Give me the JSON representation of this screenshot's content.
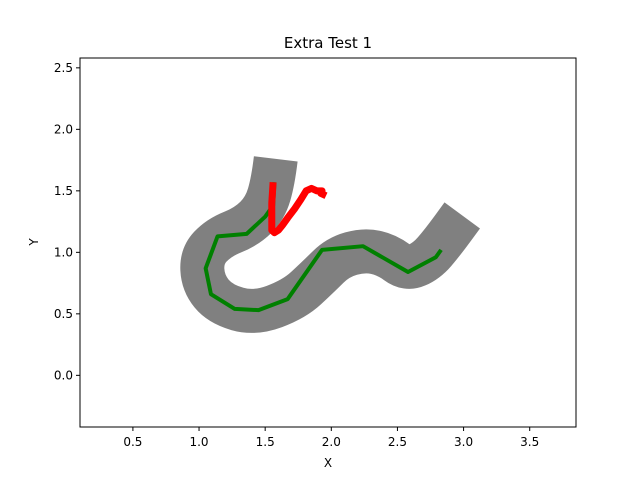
{
  "chart_data": {
    "type": "line",
    "title": "Extra Test 1",
    "xlabel": "X",
    "ylabel": "Y",
    "xlim": [
      0.1,
      3.85
    ],
    "ylim": [
      -0.42,
      2.58
    ],
    "xticks": [
      0.5,
      1.0,
      1.5,
      2.0,
      2.5,
      3.0,
      3.5
    ],
    "xtick_labels": [
      "0.5",
      "1.0",
      "1.5",
      "2.0",
      "2.5",
      "3.0",
      "3.5"
    ],
    "yticks": [
      0.0,
      0.5,
      1.0,
      1.5,
      2.0,
      2.5
    ],
    "ytick_labels": [
      "0.0",
      "0.5",
      "1.0",
      "1.5",
      "2.0",
      "2.5"
    ],
    "grid": false,
    "legend": false,
    "track": {
      "color": "#808080",
      "centerline": [
        [
          1.58,
          1.76
        ],
        [
          1.56,
          1.58
        ],
        [
          1.5,
          1.36
        ],
        [
          1.36,
          1.21
        ],
        [
          1.15,
          1.12
        ],
        [
          1.02,
          0.97
        ],
        [
          1.03,
          0.75
        ],
        [
          1.16,
          0.58
        ],
        [
          1.42,
          0.5
        ],
        [
          1.72,
          0.62
        ],
        [
          1.9,
          0.8
        ],
        [
          2.05,
          0.96
        ],
        [
          2.25,
          1.02
        ],
        [
          2.42,
          0.98
        ],
        [
          2.57,
          0.86
        ],
        [
          2.72,
          0.93
        ],
        [
          2.84,
          1.08
        ],
        [
          2.99,
          1.3
        ]
      ]
    },
    "series": [
      {
        "color": "#008000",
        "x": [
          1.57,
          1.56,
          1.5,
          1.36,
          1.14,
          1.05,
          1.09,
          1.27,
          1.45,
          1.67,
          1.93,
          2.24,
          2.58,
          2.79,
          2.83
        ],
        "y": [
          1.57,
          1.38,
          1.29,
          1.15,
          1.13,
          0.87,
          0.66,
          0.54,
          0.53,
          0.62,
          1.02,
          1.05,
          0.84,
          0.96,
          1.02
        ]
      },
      {
        "color": "#ff0000",
        "x": [
          1.56,
          1.55,
          1.55,
          1.57,
          1.6,
          1.63,
          1.67,
          1.72,
          1.77,
          1.81,
          1.85,
          1.89,
          1.93,
          1.92,
          1.96
        ],
        "y": [
          1.57,
          1.4,
          1.18,
          1.16,
          1.18,
          1.22,
          1.28,
          1.35,
          1.43,
          1.5,
          1.52,
          1.5,
          1.5,
          1.48,
          1.46
        ]
      }
    ]
  }
}
